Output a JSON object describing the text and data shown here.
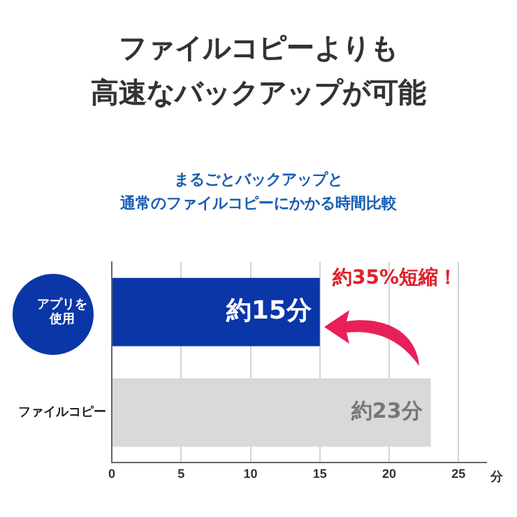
{
  "chart_data": {
    "type": "bar",
    "orientation": "horizontal",
    "title": "ファイルコピーよりも高速なバックアップが可能",
    "subtitle": "まるごとバックアップと通常のファイルコピーにかかる時間比較",
    "xlabel": "分",
    "categories": [
      "アプリを使用",
      "ファイルコピー"
    ],
    "values": [
      15,
      23
    ],
    "colors": [
      "#0a36a8",
      "#d9d9d9"
    ],
    "value_labels": [
      "約15分",
      "約23分"
    ],
    "xlim": [
      0,
      27
    ],
    "xticks": [
      0,
      5,
      10,
      15,
      20,
      25
    ],
    "grid": "x",
    "legend": false,
    "annotations": [
      "約35%短縮！"
    ]
  }
}
